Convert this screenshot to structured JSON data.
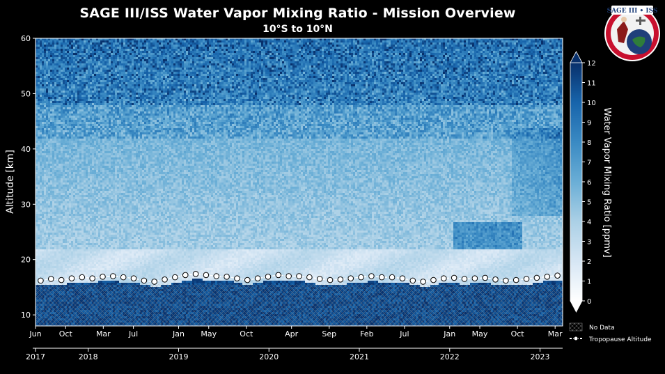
{
  "chart_data": {
    "type": "heatmap",
    "title": "SAGE III/ISS Water Vapor Mixing Ratio - Mission Overview",
    "subtitle": "10°S to 10°N",
    "ylabel": "Altitude [km]",
    "ylim": [
      8,
      60
    ],
    "yticks": [
      "10",
      "20",
      "30",
      "40",
      "50",
      "60"
    ],
    "xlim": [
      "2017-06",
      "2023-04"
    ],
    "month_ticks": [
      "Jun",
      "Oct",
      "Mar",
      "Jul",
      "Jan",
      "May",
      "Oct",
      "Apr",
      "Sep",
      "Feb",
      "Jul",
      "Jan",
      "May",
      "Oct",
      "Mar"
    ],
    "year_ticks": [
      "2017",
      "2018",
      "2019",
      "2020",
      "2021",
      "2022",
      "2023"
    ],
    "colorbar": {
      "label": "Water Vapor Mixing Ratio [ppmv]",
      "min": 0,
      "max": 12,
      "ticks": [
        "0",
        "1",
        "2",
        "3",
        "4",
        "5",
        "6",
        "7",
        "8",
        "9",
        "10",
        "11",
        "12"
      ],
      "colors": [
        "#ffffff",
        "#d6e6f4",
        "#abd0e6",
        "#6aaed6",
        "#3a8ac3",
        "#1764ab",
        "#08306b"
      ]
    },
    "legend": {
      "position": "bottom-right",
      "no_data": "No Data",
      "tropopause": "Tropopause Altitude"
    },
    "tropopause_altitude_km": [
      16.2,
      16.5,
      16.3,
      16.6,
      16.8,
      16.6,
      16.9,
      17.0,
      16.8,
      16.6,
      16.2,
      16.0,
      16.4,
      16.8,
      17.2,
      17.4,
      17.2,
      17.0,
      16.9,
      16.6,
      16.3,
      16.6,
      16.9,
      17.2,
      17.0,
      17.0,
      16.8,
      16.5,
      16.3,
      16.4,
      16.6,
      16.8,
      17.0,
      16.8,
      16.8,
      16.6,
      16.2,
      16.0,
      16.3,
      16.6,
      16.7,
      16.5,
      16.6,
      16.7,
      16.4,
      16.2,
      16.3,
      16.5,
      16.7,
      16.9,
      17.1
    ]
  },
  "logo": {
    "text": "SAGE III • ISS",
    "primary": "#c8102e",
    "secondary": "#1f3f7a"
  }
}
